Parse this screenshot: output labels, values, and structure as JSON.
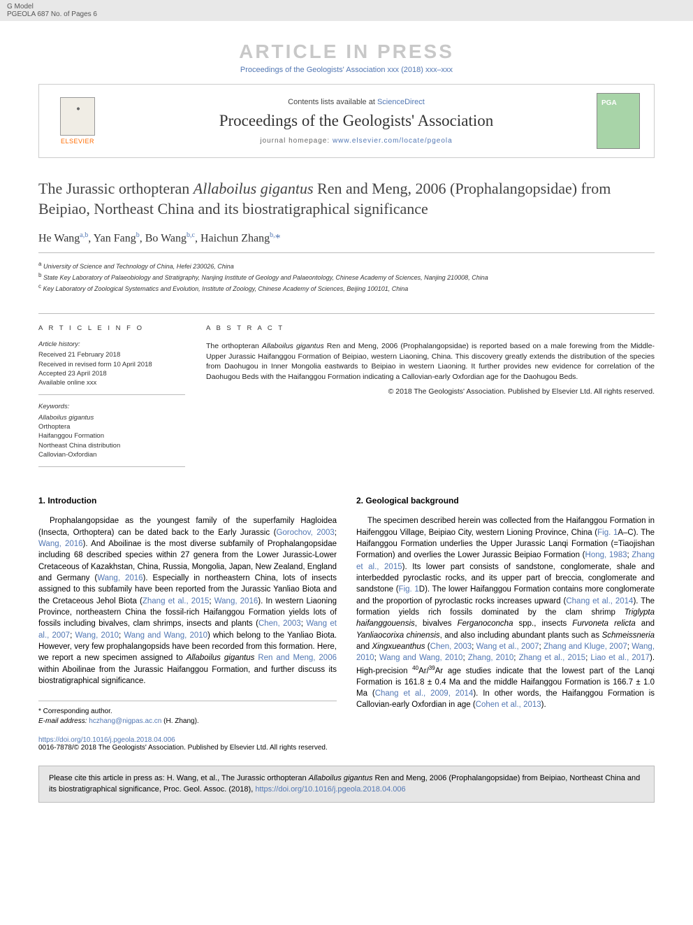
{
  "header": {
    "model_line1": "G Model",
    "model_line2": "PGEOLA 687 No. of Pages 6",
    "article_in_press": "ARTICLE IN PRESS",
    "proceedings_line": "Proceedings of the Geologists' Association xxx (2018) xxx–xxx"
  },
  "journal_box": {
    "elsevier": "ELSEVIER",
    "contents_text": "Contents lists available at ",
    "contents_link": "ScienceDirect",
    "journal_name": "Proceedings of the Geologists' Association",
    "homepage_prefix": "journal homepage: ",
    "homepage_url": "www.elsevier.com/locate/pgeola"
  },
  "title": {
    "line1_pre": "The Jurassic orthopteran ",
    "line1_italic": "Allaboilus gigantus",
    "line1_post": " Ren and Meng, 2006 (Prophalangopsidae) from Beipiao, Northeast China and its biostratigraphical significance"
  },
  "authors": {
    "a1_name": "He Wang",
    "a1_sup": "a,b",
    "a2_name": "Yan Fang",
    "a2_sup": "b",
    "a3_name": "Bo Wang",
    "a3_sup": "b,c",
    "a4_name": "Haichun Zhang",
    "a4_sup": "b,",
    "a4_ast": "*"
  },
  "affiliations": {
    "a": "University of Science and Technology of China, Hefei 230026, China",
    "b": "State Key Laboratory of Palaeobiology and Stratigraphy, Nanjing Institute of Geology and Palaeontology, Chinese Academy of Sciences, Nanjing 210008, China",
    "c": "Key Laboratory of Zoological Systematics and Evolution, Institute of Zoology, Chinese Academy of Sciences, Beijing 100101, China"
  },
  "article_info": {
    "heading": "A R T I C L E  I N F O",
    "history_label": "Article history:",
    "received": "Received 21 February 2018",
    "revised": "Received in revised form 10 April 2018",
    "accepted": "Accepted 23 April 2018",
    "online": "Available online xxx",
    "keywords_label": "Keywords:",
    "k1": "Allaboilus gigantus",
    "k2": "Orthoptera",
    "k3": "Haifanggou Formation",
    "k4": "Northeast China distribution",
    "k5": "Callovian-Oxfordian"
  },
  "abstract": {
    "heading": "A B S T R A C T",
    "text_pre": "The orthopteran ",
    "text_italic": "Allaboilus gigantus",
    "text_post": " Ren and Meng, 2006 (Prophalangopsidae) is reported based on a male forewing from the Middle-Upper Jurassic Haifanggou Formation of Beipiao, western Liaoning, China. This discovery greatly extends the distribution of the species from Daohugou in Inner Mongolia eastwards to Beipiao in western Liaoning. It further provides new evidence for correlation of the Daohugou Beds with the Haifanggou Formation indicating a Callovian-early Oxfordian age for the Daohugou Beds.",
    "copyright": "© 2018 The Geologists' Association. Published by Elsevier Ltd. All rights reserved."
  },
  "body": {
    "sec1_heading": "1. Introduction",
    "sec1_p1": "Prophalangopsidae as the youngest family of the superfamily Hagloidea (Insecta, Orthoptera) can be dated back to the Early Jurassic (Gorochov, 2003; Wang, 2016). And Aboilinae is the most diverse subfamily of Prophalangopsidae including 68 described species within 27 genera from the Lower Jurassic-Lower Cretaceous of Kazakhstan, China, Russia, Mongolia, Japan, New Zealand, England and Germany (Wang, 2016). Especially in northeastern China, lots of insects assigned to this subfamily have been reported from the Jurassic Yanliao Biota and the Cretaceous Jehol Biota (Zhang et al., 2015; Wang, 2016). In western Liaoning Province, northeastern China the fossil-rich Haifanggou Formation yields lots of fossils including bivalves, clam shrimps, insects and plants (Chen, 2003; Wang et al., 2007; Wang, 2010; Wang and Wang, 2010) which belong to the Yanliao Biota. However, very few prophalangopsids have been recorded from this formation. Here, we report a new specimen assigned to Allaboilus gigantus Ren and Meng, 2006 within Aboilinae from the Jurassic Haifanggou Formation, and further discuss its biostratigraphical significance.",
    "sec2_heading": "2. Geological background",
    "sec2_p1": "The specimen described herein was collected from the Haifanggou Formation in Haifenggou Village, Beipiao City, western Lioning Province, China (Fig. 1A–C). The Haifanggou Formation underlies the Upper Jurassic Lanqi Formation (=Tiaojishan Formation) and overlies the Lower Jurassic Beipiao Formation (Hong, 1983; Zhang et al., 2015). Its lower part consists of sandstone, conglomerate, shale and interbedded pyroclastic rocks, and its upper part of breccia, conglomerate and sandstone (Fig. 1D). The lower Haifanggou Formation contains more conglomerate and the proportion of pyroclastic rocks increases upward (Chang et al., 2014). The formation yields rich fossils dominated by the clam shrimp Triglypta haifanggouensis, bivalves Ferganoconcha spp., insects Furvoneta relicta and Yanliaocorixa chinensis, and also including abundant plants such as Schmeissneria and Xingxueanthus (Chen, 2003; Wang et al., 2007; Zhang and Kluge, 2007; Wang, 2010; Wang and Wang, 2010; Zhang, 2010; Zhang et al., 2015; Liao et al., 2017). High-precision 40Ar/39Ar age studies indicate that the lowest part of the Lanqi Formation is 161.8 ± 0.4 Ma and the middle Haifanggou Formation is 166.7 ± 1.0 Ma (Chang et al., 2009, 2014). In other words, the Haifanggou Formation is Callovian-early Oxfordian in age (Cohen et al., 2013)."
  },
  "footer": {
    "corresponding": "* Corresponding author.",
    "email_label": "E-mail address: ",
    "email": "hczhang@nigpas.ac.cn",
    "email_post": " (H. Zhang).",
    "doi": "https://doi.org/10.1016/j.pgeola.2018.04.006",
    "issn_line": "0016-7878/© 2018 The Geologists' Association. Published by Elsevier Ltd. All rights reserved."
  },
  "cite_box": {
    "text_pre": "Please cite this article in press as: H. Wang, et al., The Jurassic orthopteran ",
    "text_italic": "Allaboilus gigantus",
    "text_post": " Ren and Meng, 2006 (Prophalangopsidae) from Beipiao, Northeast China and its biostratigraphical significance, Proc. Geol. Assoc. (2018), ",
    "link": "https://doi.org/10.1016/j.pgeola.2018.04.006"
  },
  "colors": {
    "link": "#5277b3",
    "grey_bg": "#e8e8e8",
    "cover_bg": "#a8d4a8",
    "light_text": "#c8c8c8"
  }
}
